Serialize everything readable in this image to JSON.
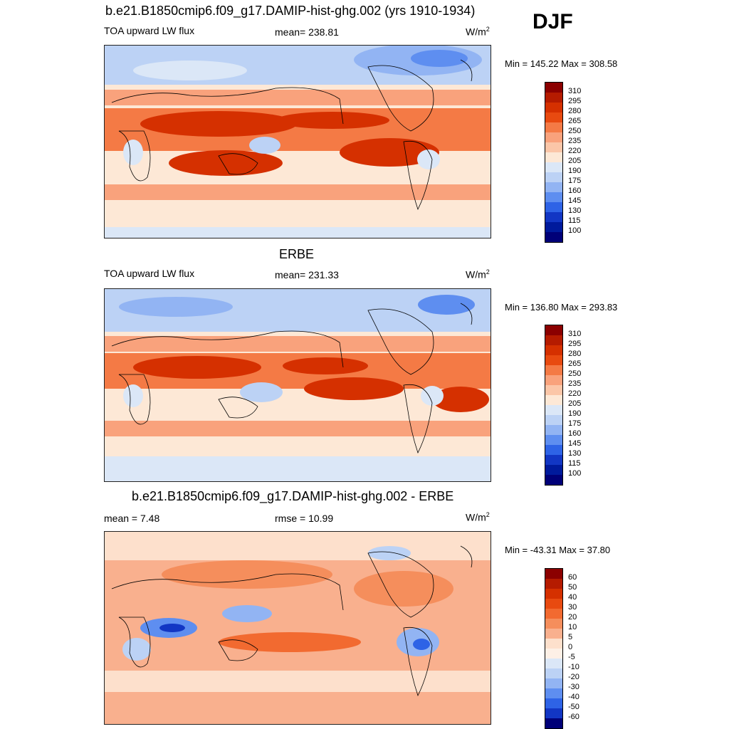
{
  "season": "DJF",
  "units_main": "W/m",
  "units_sup": "2",
  "panels": [
    {
      "title": "b.e21.B1850cmip6.f09_g17.DAMIP-hist-ghg.002 (yrs 1910-1934)",
      "left_label": "TOA upward LW flux",
      "mid_label": "mean= 238.81",
      "minmax": "Min = 145.22 Max = 308.58"
    },
    {
      "title": "ERBE",
      "left_label": "TOA upward LW flux",
      "mid_label": "mean= 231.33",
      "minmax": "Min = 136.80 Max = 293.83"
    },
    {
      "title": "b.e21.B1850cmip6.f09_g17.DAMIP-hist-ghg.002 - ERBE",
      "left_label": "mean =   7.48",
      "mid_label": "rmse =  10.99",
      "minmax": "Min = -43.31 Max =  37.80"
    }
  ],
  "chart_data": [
    {
      "type": "heatmap",
      "title": "b.e21.B1850cmip6.f09_g17.DAMIP-hist-ghg.002 (yrs 1910-1934)",
      "variable": "TOA upward LW flux",
      "units": "W/m2",
      "mean": 238.81,
      "min": 145.22,
      "max": 308.58,
      "colorbar_levels": [
        "310",
        "295",
        "280",
        "265",
        "250",
        "235",
        "220",
        "205",
        "190",
        "175",
        "160",
        "145",
        "130",
        "115",
        "100"
      ],
      "colorbar_colors": [
        "#8b0000",
        "#b51b00",
        "#d53000",
        "#e84a10",
        "#f47a45",
        "#f9a27c",
        "#fbc6a8",
        "#fde8d6",
        "#dbe7f7",
        "#bcd2f5",
        "#92b4f3",
        "#5e8ef0",
        "#2e63e6",
        "#1236c4",
        "#001a9c",
        "#000078"
      ]
    },
    {
      "type": "heatmap",
      "title": "ERBE",
      "variable": "TOA upward LW flux",
      "units": "W/m2",
      "mean": 231.33,
      "min": 136.8,
      "max": 293.83,
      "colorbar_levels": [
        "310",
        "295",
        "280",
        "265",
        "250",
        "235",
        "220",
        "205",
        "190",
        "175",
        "160",
        "145",
        "130",
        "115",
        "100"
      ],
      "colorbar_colors": [
        "#8b0000",
        "#b51b00",
        "#d53000",
        "#e84a10",
        "#f47a45",
        "#f9a27c",
        "#fbc6a8",
        "#fde8d6",
        "#dbe7f7",
        "#bcd2f5",
        "#92b4f3",
        "#5e8ef0",
        "#2e63e6",
        "#1236c4",
        "#001a9c",
        "#000078"
      ]
    },
    {
      "type": "heatmap",
      "title": "b.e21.B1850cmip6.f09_g17.DAMIP-hist-ghg.002 - ERBE",
      "units": "W/m2",
      "mean": 7.48,
      "rmse": 10.99,
      "min": -43.31,
      "max": 37.8,
      "colorbar_levels": [
        "60",
        "50",
        "40",
        "30",
        "20",
        "10",
        "5",
        "0",
        "-5",
        "-10",
        "-20",
        "-30",
        "-40",
        "-50",
        "-60"
      ],
      "colorbar_colors": [
        "#8b0000",
        "#b51b00",
        "#d53000",
        "#e84a10",
        "#f26a30",
        "#f58e5c",
        "#f9b08e",
        "#fde0cc",
        "#fdf0e6",
        "#dbe7f7",
        "#bcd2f5",
        "#92b4f3",
        "#5e8ef0",
        "#2e63e6",
        "#1236c4",
        "#000078"
      ]
    }
  ]
}
